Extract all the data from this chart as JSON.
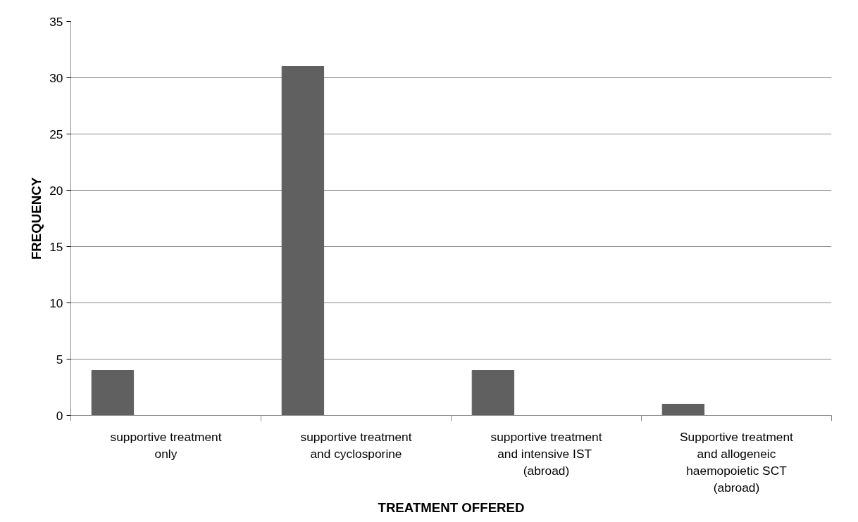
{
  "chart_data": {
    "type": "bar",
    "xlabel": "TREATMENT OFFERED",
    "ylabel": "FREQUENCY",
    "categories": [
      "supportive treatment only",
      "supportive treatment and cyclosporine",
      "supportive treatment and  intensive IST (abroad)",
      "Supportive treatment and allogeneic haemopoietic SCT (abroad)"
    ],
    "values": [
      4,
      31,
      4,
      1
    ],
    "color": "#606060",
    "ylim": [
      0,
      35
    ],
    "yticks": [
      0,
      5,
      10,
      15,
      20,
      25,
      30,
      35
    ],
    "grid": "y"
  }
}
